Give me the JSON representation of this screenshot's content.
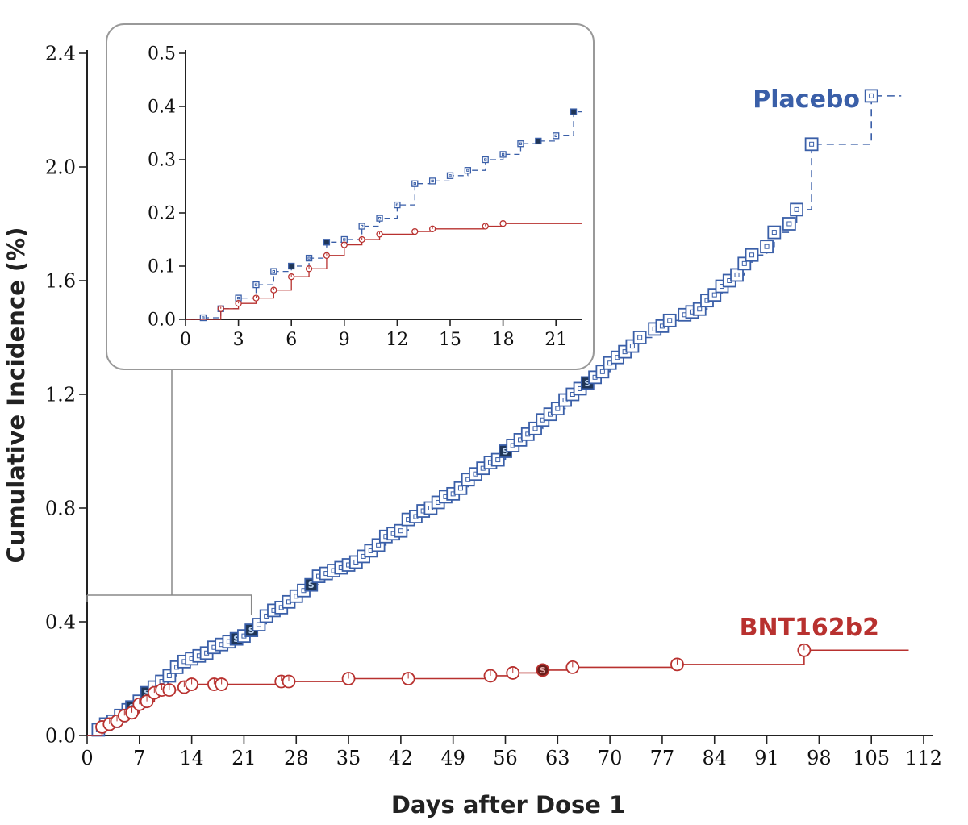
{
  "chart_data": [
    {
      "type": "line",
      "xlabel": "Days after Dose 1",
      "ylabel": "Cumulative Incidence (%)",
      "xlim": [
        0,
        112
      ],
      "ylim": [
        0,
        2.4
      ],
      "xticks": [
        "0",
        "7",
        "14",
        "21",
        "28",
        "35",
        "42",
        "49",
        "56",
        "63",
        "70",
        "77",
        "84",
        "91",
        "98",
        "105",
        "112"
      ],
      "yticks": [
        "0.0",
        "0.4",
        "0.8",
        "1.2",
        "1.6",
        "2.0",
        "2.4"
      ],
      "grid": false,
      "severe_marker_text": "S",
      "series": [
        {
          "name": "Placebo",
          "color": "#3a5fa8",
          "line_style": "dashed",
          "marker": "open-square",
          "points": [
            [
              0,
              0
            ],
            [
              1.5,
              0.02
            ],
            [
              2.5,
              0.04
            ],
            [
              3.5,
              0.05
            ],
            [
              4.5,
              0.07
            ],
            [
              5.5,
              0.09
            ],
            [
              6,
              0.1
            ],
            [
              7,
              0.12
            ],
            [
              8,
              0.15
            ],
            [
              9,
              0.17
            ],
            [
              10,
              0.19
            ],
            [
              11,
              0.21
            ],
            [
              12,
              0.24
            ],
            [
              13,
              0.26
            ],
            [
              14,
              0.27
            ],
            [
              15,
              0.28
            ],
            [
              16,
              0.29
            ],
            [
              17,
              0.31
            ],
            [
              18,
              0.32
            ],
            [
              19,
              0.33
            ],
            [
              20,
              0.34
            ],
            [
              21,
              0.35
            ],
            [
              22,
              0.37
            ],
            [
              23,
              0.39
            ],
            [
              24,
              0.42
            ],
            [
              25,
              0.44
            ],
            [
              26,
              0.45
            ],
            [
              27,
              0.47
            ],
            [
              28,
              0.49
            ],
            [
              29,
              0.51
            ],
            [
              30,
              0.53
            ],
            [
              31,
              0.56
            ],
            [
              32,
              0.57
            ],
            [
              33,
              0.58
            ],
            [
              34,
              0.59
            ],
            [
              35,
              0.6
            ],
            [
              36,
              0.61
            ],
            [
              37,
              0.63
            ],
            [
              38,
              0.65
            ],
            [
              39,
              0.67
            ],
            [
              40,
              0.7
            ],
            [
              41,
              0.71
            ],
            [
              42,
              0.72
            ],
            [
              43,
              0.76
            ],
            [
              44,
              0.77
            ],
            [
              45,
              0.79
            ],
            [
              46,
              0.8
            ],
            [
              47,
              0.82
            ],
            [
              48,
              0.84
            ],
            [
              49,
              0.85
            ],
            [
              50,
              0.87
            ],
            [
              51,
              0.9
            ],
            [
              52,
              0.92
            ],
            [
              53,
              0.94
            ],
            [
              54,
              0.96
            ],
            [
              55,
              0.97
            ],
            [
              56,
              1.0
            ],
            [
              57,
              1.02
            ],
            [
              58,
              1.04
            ],
            [
              59,
              1.06
            ],
            [
              60,
              1.08
            ],
            [
              61,
              1.11
            ],
            [
              62,
              1.13
            ],
            [
              63,
              1.15
            ],
            [
              64,
              1.18
            ],
            [
              65,
              1.2
            ],
            [
              66,
              1.22
            ],
            [
              67,
              1.24
            ],
            [
              68,
              1.26
            ],
            [
              69,
              1.28
            ],
            [
              70,
              1.31
            ],
            [
              71,
              1.33
            ],
            [
              72,
              1.35
            ],
            [
              73,
              1.37
            ],
            [
              74,
              1.4
            ],
            [
              76,
              1.43
            ],
            [
              77,
              1.44
            ],
            [
              78,
              1.46
            ],
            [
              80,
              1.48
            ],
            [
              81,
              1.49
            ],
            [
              82,
              1.5
            ],
            [
              83,
              1.53
            ],
            [
              84,
              1.55
            ],
            [
              85,
              1.58
            ],
            [
              86,
              1.6
            ],
            [
              87,
              1.62
            ],
            [
              88,
              1.66
            ],
            [
              89,
              1.69
            ],
            [
              91,
              1.72
            ],
            [
              92,
              1.77
            ],
            [
              94,
              1.8
            ],
            [
              95,
              1.85
            ],
            [
              97,
              2.08
            ],
            [
              105,
              2.25
            ]
          ],
          "line_end_x": 109,
          "severe_x": [
            6,
            8,
            20,
            22,
            30,
            56,
            67
          ]
        },
        {
          "name": "BNT162b2",
          "color": "#b8312f",
          "line_style": "solid",
          "marker": "open-circle",
          "points": [
            [
              0,
              0
            ],
            [
              2,
              0.03
            ],
            [
              3,
              0.04
            ],
            [
              4,
              0.05
            ],
            [
              5,
              0.07
            ],
            [
              6,
              0.08
            ],
            [
              7,
              0.11
            ],
            [
              8,
              0.12
            ],
            [
              9,
              0.15
            ],
            [
              10,
              0.16
            ],
            [
              11,
              0.16
            ],
            [
              13,
              0.17
            ],
            [
              14,
              0.18
            ],
            [
              17,
              0.18
            ],
            [
              18,
              0.18
            ],
            [
              26,
              0.19
            ],
            [
              27,
              0.19
            ],
            [
              35,
              0.2
            ],
            [
              43,
              0.2
            ],
            [
              54,
              0.21
            ],
            [
              57,
              0.22
            ],
            [
              61,
              0.23
            ],
            [
              65,
              0.24
            ],
            [
              79,
              0.25
            ],
            [
              96,
              0.3
            ]
          ],
          "line_end_x": 110,
          "severe_x": [
            61
          ]
        }
      ]
    },
    {
      "type": "line",
      "inset": true,
      "xlim": [
        0,
        22.5
      ],
      "ylim": [
        0,
        0.5
      ],
      "xticks": [
        "0",
        "3",
        "6",
        "9",
        "12",
        "15",
        "18",
        "21"
      ],
      "yticks": [
        "0.0",
        "0.1",
        "0.2",
        "0.3",
        "0.4",
        "0.5"
      ],
      "grid": false,
      "series": [
        {
          "name": "Placebo",
          "points": [
            [
              0,
              0
            ],
            [
              1,
              0.003
            ],
            [
              2,
              0.02
            ],
            [
              3,
              0.04
            ],
            [
              4,
              0.065
            ],
            [
              5,
              0.09
            ],
            [
              6,
              0.1
            ],
            [
              7,
              0.115
            ],
            [
              8,
              0.145
            ],
            [
              9,
              0.15
            ],
            [
              10,
              0.175
            ],
            [
              11,
              0.19
            ],
            [
              12,
              0.215
            ],
            [
              13,
              0.255
            ],
            [
              14,
              0.26
            ],
            [
              15,
              0.27
            ],
            [
              16,
              0.28
            ],
            [
              17,
              0.3
            ],
            [
              18,
              0.31
            ],
            [
              19,
              0.33
            ],
            [
              20,
              0.335
            ],
            [
              21,
              0.345
            ],
            [
              22,
              0.39
            ]
          ],
          "line_end_x": 22.5,
          "severe_x": [
            6,
            8,
            20,
            22
          ]
        },
        {
          "name": "BNT162b2",
          "points": [
            [
              0,
              0
            ],
            [
              2,
              0.02
            ],
            [
              3,
              0.03
            ],
            [
              4,
              0.04
            ],
            [
              5,
              0.055
            ],
            [
              6,
              0.08
            ],
            [
              7,
              0.095
            ],
            [
              8,
              0.12
            ],
            [
              9,
              0.14
            ],
            [
              10,
              0.15
            ],
            [
              11,
              0.16
            ],
            [
              13,
              0.165
            ],
            [
              14,
              0.17
            ],
            [
              17,
              0.175
            ],
            [
              18,
              0.18
            ]
          ],
          "line_end_x": 22.5,
          "severe_x": []
        }
      ]
    }
  ]
}
